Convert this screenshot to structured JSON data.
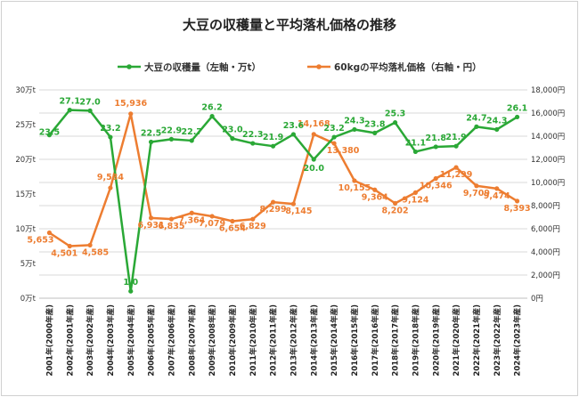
{
  "chart_data": {
    "type": "line",
    "title": "大豆の収穫量と平均落札価格の推移",
    "categories": [
      "2001年(2000年産)",
      "2002年(2001年産)",
      "2003年(2002年産)",
      "2004年(2003年産)",
      "2005年(2004年産)",
      "2006年(2005年産)",
      "2007年(2006年産)",
      "2008年(2007年産)",
      "2009年(2008年産)",
      "2010年(2009年産)",
      "2011年(2010年産)",
      "2012年(2011年産)",
      "2013年(2012年産)",
      "2014年(2013年産)",
      "2015年(2014年産)",
      "2016年(2015年産)",
      "2017年(2016年産)",
      "2018年(2017年産)",
      "2019年(2018年産)",
      "2020年(2019年産)",
      "2021年(2020年産)",
      "2022年(2021年産)",
      "2023年(2022年産)",
      "2024年(2023年産)"
    ],
    "series": [
      {
        "name": "大豆の収穫量（左軸・万t）",
        "axis": "left",
        "color": "#2aa836",
        "values": [
          23.5,
          27.1,
          27.0,
          23.2,
          1.0,
          22.5,
          22.9,
          22.7,
          26.2,
          23.0,
          22.3,
          21.9,
          23.6,
          20.0,
          23.2,
          24.3,
          23.8,
          25.3,
          21.1,
          21.8,
          21.9,
          24.7,
          24.3,
          26.1
        ],
        "labels": [
          "23.5",
          "27.1",
          "27.0",
          "23.2",
          "1.0",
          "22.5",
          "22.9",
          "22.7",
          "26.2",
          "23.0",
          "22.3",
          "21.9",
          "23.6",
          "20.0",
          "23.2",
          "24.3",
          "23.8",
          "25.3",
          "21.1",
          "21.8",
          "21.9",
          "24.7",
          "24.3",
          "26.1"
        ]
      },
      {
        "name": "60kgの平均落札価格（右軸・円）",
        "axis": "right",
        "color": "#ed7d31",
        "values": [
          5653,
          4501,
          4585,
          9534,
          15936,
          6931,
          6835,
          7364,
          7079,
          6654,
          6829,
          8299,
          8145,
          14168,
          13380,
          10155,
          9364,
          8202,
          9124,
          10346,
          11299,
          9709,
          9474,
          8393
        ],
        "labels": [
          "5,653",
          "4,501",
          "4,585",
          "9,534",
          "15,936",
          "6,931",
          "6,835",
          "7,364",
          "7,079",
          "6,654",
          "6,829",
          "8,299",
          "8,145",
          "14,168",
          "13,380",
          "10,155",
          "9,364",
          "8,202",
          "9,124",
          "10,346",
          "11,299",
          "9,709",
          "9,474",
          "8,393"
        ]
      }
    ],
    "left_axis": {
      "ylim": [
        0,
        30
      ],
      "ticks": [
        0,
        5,
        10,
        15,
        20,
        25,
        30
      ],
      "tick_labels": [
        "0万t",
        "5万t",
        "10万t",
        "15万t",
        "20万t",
        "25万t",
        "30万t"
      ]
    },
    "right_axis": {
      "ylim": [
        0,
        18000
      ],
      "ticks": [
        0,
        2000,
        4000,
        6000,
        8000,
        10000,
        12000,
        14000,
        16000,
        18000
      ],
      "tick_labels": [
        "0円",
        "2,000円",
        "4,000円",
        "6,000円",
        "8,000円",
        "10,000円",
        "12,000円",
        "14,000円",
        "16,000円",
        "18,000円"
      ]
    },
    "grid": "horizontal",
    "legend_position": "top"
  }
}
